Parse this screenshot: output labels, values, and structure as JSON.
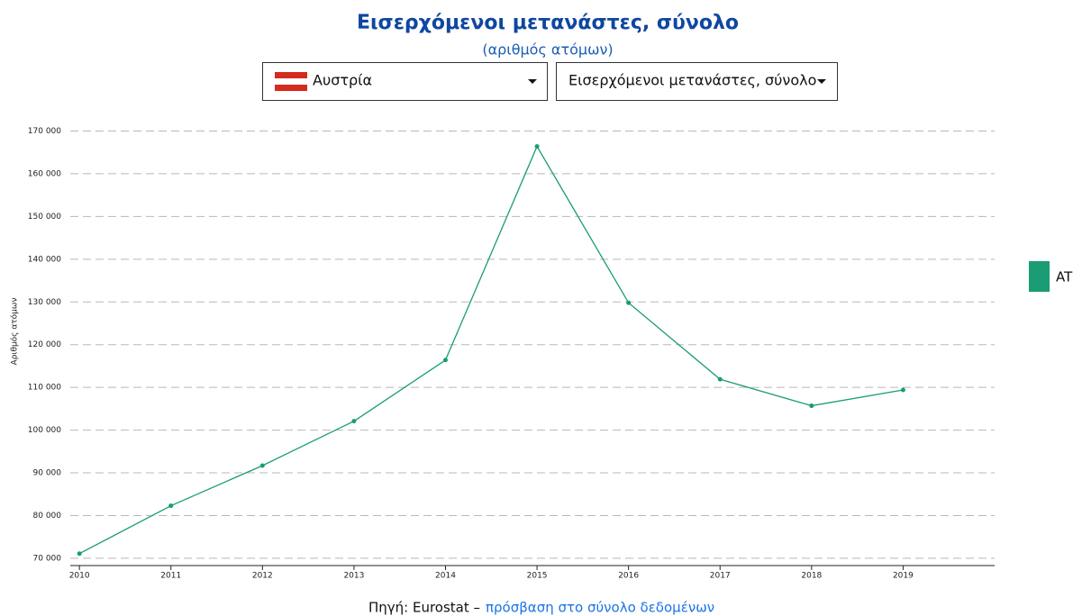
{
  "chart_data": {
    "type": "line",
    "title": "Εισερχόμενοι μετανάστες, σύνολο",
    "subtitle": "(αριθμός ατόμων)",
    "y_label": "Αριθμός ατόμων",
    "x": [
      2010,
      2011,
      2012,
      2013,
      2014,
      2015,
      2016,
      2017,
      2018,
      2019
    ],
    "series": [
      {
        "name": "AT",
        "color": "#1a9c74",
        "values": [
          71100,
          82300,
          91700,
          102100,
          116400,
          166400,
          129800,
          111900,
          105700,
          109400
        ]
      }
    ],
    "xlim": [
      2009.9,
      2020.0
    ],
    "xticks": [
      2010,
      2011,
      2012,
      2013,
      2014,
      2015,
      2016,
      2017,
      2018,
      2019
    ],
    "ylim": [
      68300,
      172000
    ],
    "yticks": [
      {
        "value": 70000,
        "label": "70 000"
      },
      {
        "value": 80000,
        "label": "80 000"
      },
      {
        "value": 90000,
        "label": "90 000"
      },
      {
        "value": 100000,
        "label": "100 000"
      },
      {
        "value": 110000,
        "label": "110 000"
      },
      {
        "value": 120000,
        "label": "120 000"
      },
      {
        "value": 130000,
        "label": "130 000"
      },
      {
        "value": 140000,
        "label": "140 000"
      },
      {
        "value": 150000,
        "label": "150 000"
      },
      {
        "value": 160000,
        "label": "160 000"
      },
      {
        "value": 170000,
        "label": "170 000"
      }
    ],
    "grid": true,
    "legend": "right"
  },
  "controls": {
    "country": "Αυστρία",
    "indicator": "Εισερχόμενοι μετανάστες, σύνολο"
  },
  "source": {
    "text": "Πηγή: Eurostat –",
    "link": "πρόσβαση στο σύνολο δεδομένων"
  }
}
